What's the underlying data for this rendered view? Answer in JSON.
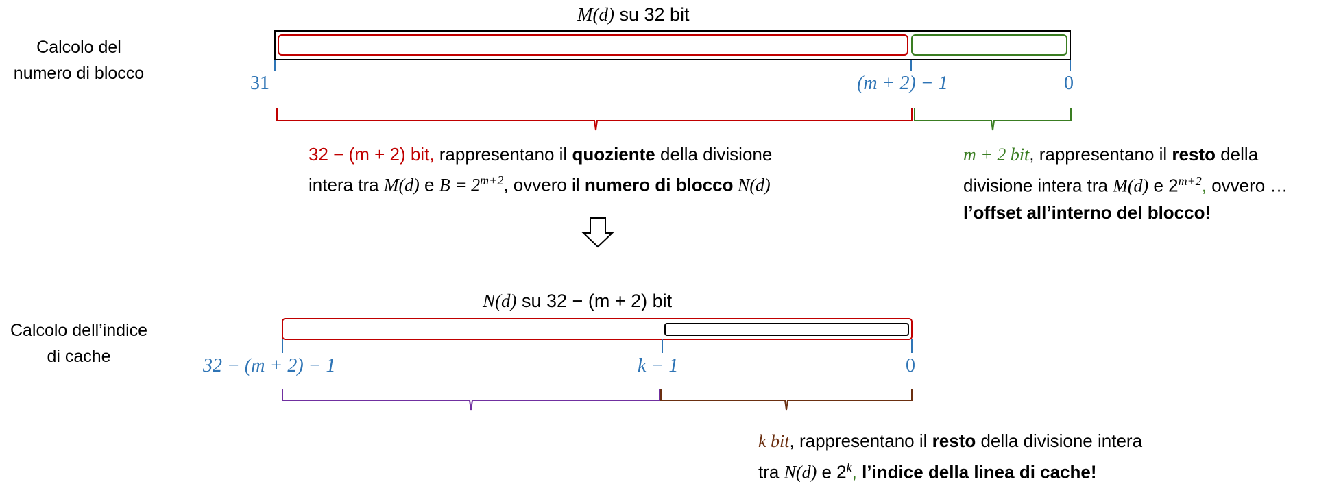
{
  "section1": {
    "side_label_line1": "Calcolo del",
    "side_label_line2": "numero di blocco",
    "title_fn": "M(d)",
    "title_rest": " su 32 bit",
    "tick_left": "31",
    "tick_mid": "(m + 2) − 1",
    "tick_right": "0",
    "quotient_desc": {
      "red_part": "32 − (m + 2) bit,",
      "text1": " rappresentano il ",
      "bold1": "quoziente",
      "text2": " della divisione",
      "line2_pre": "intera tra ",
      "line2_m": "M(d)",
      "line2_e": " e ",
      "line2_b": "B = 2",
      "line2_exp": "m+2",
      "line2_mid": ", ovvero il ",
      "bold2": "numero di blocco",
      "line2_n": " N(d)"
    },
    "remainder_desc": {
      "green_part": "m + 2 bit",
      "text1": ", rappresentano il ",
      "bold1": "resto",
      "text2": " della",
      "line2_pre": "divisione intera tra ",
      "line2_m": "M(d)",
      "line2_e": " e 2",
      "line2_exp": "m+2",
      "line2_comma": ",",
      "line2_post": " ovvero …",
      "line3_bold": "l’offset all’interno del blocco!"
    }
  },
  "arrow_icon": "down-arrow-icon",
  "section2": {
    "side_label_line1": "Calcolo dell’indice",
    "side_label_line2": "di cache",
    "title_fn": "N(d)",
    "title_rest": " su 32 − (m + 2) bit",
    "tick_left": "32 − (m + 2) − 1",
    "tick_mid": "k − 1",
    "tick_right": "0",
    "index_desc": {
      "brown_part": "k bit",
      "text1": ", rappresentano il ",
      "bold1": "resto",
      "text2": " della divisione intera",
      "line2_pre": "tra ",
      "line2_n": "N(d)",
      "line2_e": " e 2",
      "line2_exp": "k",
      "line2_comma": ",",
      "line2_bold": " l’indice della linea di cache!"
    }
  },
  "colors": {
    "red": "#c00000",
    "green": "#3a7d22",
    "brown": "#6b2f10",
    "purple": "#7030a0",
    "blue": "#2e74b5"
  }
}
